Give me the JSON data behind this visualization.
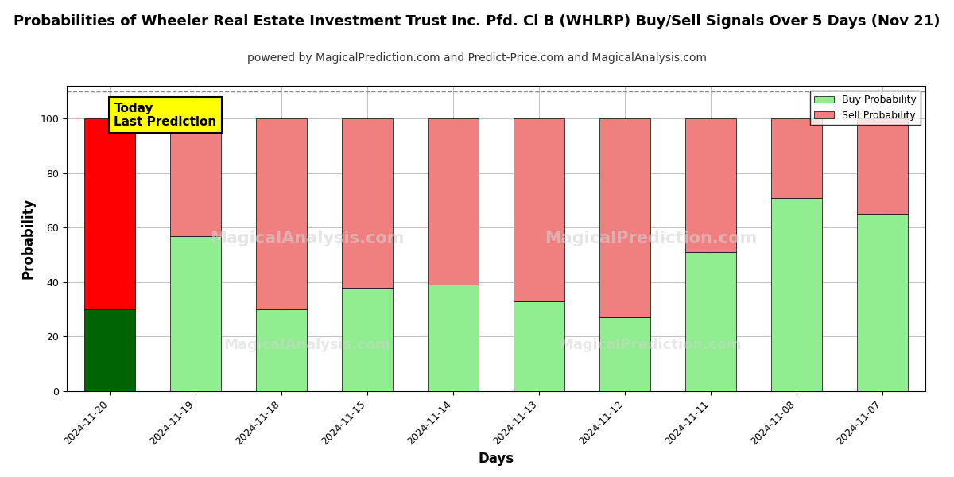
{
  "title": "Probabilities of Wheeler Real Estate Investment Trust Inc. Pfd. Cl B (WHLRP) Buy/Sell Signals Over 5 Days (Nov 21)",
  "subtitle": "powered by MagicalPrediction.com and Predict-Price.com and MagicalAnalysis.com",
  "xlabel": "Days",
  "ylabel": "Probability",
  "watermark_left": "MagicalAnalysis.com",
  "watermark_right": "MagicalPrediction.com",
  "categories": [
    "2024-11-20",
    "2024-11-19",
    "2024-11-18",
    "2024-11-15",
    "2024-11-14",
    "2024-11-13",
    "2024-11-12",
    "2024-11-11",
    "2024-11-08",
    "2024-11-07"
  ],
  "buy_values": [
    30,
    57,
    30,
    38,
    39,
    33,
    27,
    51,
    71,
    65
  ],
  "sell_values": [
    70,
    43,
    70,
    62,
    61,
    67,
    73,
    49,
    29,
    35
  ],
  "today_bar_index": 0,
  "today_buy_color": "#006400",
  "today_sell_color": "#FF0000",
  "normal_buy_color": "#90EE90",
  "normal_sell_color": "#F08080",
  "bar_edge_color": "#000000",
  "ylim": [
    0,
    112
  ],
  "yticks": [
    0,
    20,
    40,
    60,
    80,
    100
  ],
  "dashed_line_y": 110,
  "legend_buy_label": "Buy Probability",
  "legend_sell_label": "Sell Probability",
  "today_label_line1": "Today",
  "today_label_line2": "Last Prediction",
  "today_box_color": "#FFFF00",
  "title_fontsize": 13,
  "subtitle_fontsize": 10,
  "axis_label_fontsize": 12,
  "tick_fontsize": 9,
  "background_color": "#FFFFFF",
  "grid_color": "#AAAAAA"
}
